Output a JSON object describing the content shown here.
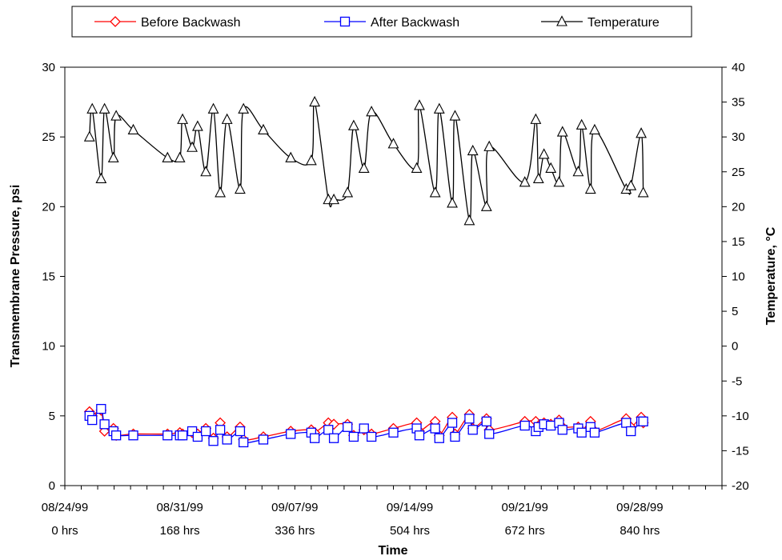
{
  "chart_data": {
    "type": "line",
    "xlabel": "Time",
    "ylabel_left": "Transmembrane Pressure, psi",
    "ylabel_right": "Temperature, °C",
    "x_unit": "hrs",
    "xlim": [
      0,
      960
    ],
    "ylim_left": [
      0,
      30
    ],
    "ylim_right": [
      -20,
      40
    ],
    "yticks_left": [
      "0",
      "5",
      "10",
      "15",
      "20",
      "25",
      "30"
    ],
    "yticks_right": [
      "-20",
      "-15",
      "-10",
      "-5",
      "0",
      "5",
      "10",
      "15",
      "20",
      "25",
      "30",
      "35",
      "40"
    ],
    "xticks": [
      {
        "x": 0,
        "date": "08/24/99",
        "hrs": "0 hrs"
      },
      {
        "x": 168,
        "date": "08/31/99",
        "hrs": "168 hrs"
      },
      {
        "x": 336,
        "date": "09/07/99",
        "hrs": "336 hrs"
      },
      {
        "x": 504,
        "date": "09/14/99",
        "hrs": "504 hrs"
      },
      {
        "x": 672,
        "date": "09/21/99",
        "hrs": "672 hrs"
      },
      {
        "x": 840,
        "date": "09/28/99",
        "hrs": "840 hrs"
      }
    ],
    "grid": false,
    "legend_position": "top",
    "series": [
      {
        "name": "Before Backwash",
        "axis": "left",
        "color": "#ff0000",
        "marker": "diamond",
        "points": [
          [
            36,
            5.3
          ],
          [
            40,
            5.0
          ],
          [
            53,
            5.4
          ],
          [
            58,
            3.9
          ],
          [
            71,
            4.1
          ],
          [
            75,
            3.6
          ],
          [
            100,
            3.7
          ],
          [
            150,
            3.7
          ],
          [
            168,
            3.8
          ],
          [
            172,
            3.7
          ],
          [
            186,
            3.8
          ],
          [
            194,
            3.7
          ],
          [
            206,
            4.1
          ],
          [
            217,
            3.4
          ],
          [
            227,
            4.5
          ],
          [
            237,
            3.5
          ],
          [
            256,
            4.2
          ],
          [
            261,
            3.3
          ],
          [
            290,
            3.5
          ],
          [
            330,
            3.9
          ],
          [
            360,
            4.0
          ],
          [
            365,
            3.8
          ],
          [
            385,
            4.5
          ],
          [
            393,
            4.4
          ],
          [
            413,
            4.4
          ],
          [
            422,
            3.6
          ],
          [
            437,
            4.0
          ],
          [
            448,
            3.7
          ],
          [
            480,
            4.1
          ],
          [
            514,
            4.5
          ],
          [
            518,
            3.9
          ],
          [
            541,
            4.6
          ],
          [
            547,
            3.6
          ],
          [
            566,
            4.9
          ],
          [
            570,
            3.7
          ],
          [
            591,
            5.1
          ],
          [
            596,
            4.1
          ],
          [
            616,
            4.8
          ],
          [
            620,
            4.0
          ],
          [
            672,
            4.6
          ],
          [
            688,
            4.6
          ],
          [
            692,
            4.3
          ],
          [
            700,
            4.5
          ],
          [
            710,
            4.4
          ],
          [
            722,
            4.7
          ],
          [
            727,
            4.2
          ],
          [
            750,
            4.2
          ],
          [
            755,
            3.9
          ],
          [
            768,
            4.6
          ],
          [
            774,
            3.9
          ],
          [
            820,
            4.8
          ],
          [
            827,
            4.2
          ],
          [
            842,
            4.9
          ],
          [
            845,
            4.5
          ]
        ]
      },
      {
        "name": "After Backwash",
        "axis": "left",
        "color": "#0000ff",
        "marker": "square",
        "points": [
          [
            36,
            5.0
          ],
          [
            40,
            4.7
          ],
          [
            53,
            5.5
          ],
          [
            58,
            4.4
          ],
          [
            71,
            3.9
          ],
          [
            75,
            3.6
          ],
          [
            100,
            3.6
          ],
          [
            150,
            3.6
          ],
          [
            168,
            3.6
          ],
          [
            172,
            3.6
          ],
          [
            186,
            3.9
          ],
          [
            194,
            3.5
          ],
          [
            206,
            3.9
          ],
          [
            217,
            3.2
          ],
          [
            227,
            4.0
          ],
          [
            237,
            3.3
          ],
          [
            256,
            3.9
          ],
          [
            261,
            3.1
          ],
          [
            290,
            3.3
          ],
          [
            330,
            3.7
          ],
          [
            360,
            3.8
          ],
          [
            365,
            3.4
          ],
          [
            385,
            4.0
          ],
          [
            393,
            3.4
          ],
          [
            413,
            4.2
          ],
          [
            422,
            3.5
          ],
          [
            437,
            4.1
          ],
          [
            448,
            3.5
          ],
          [
            480,
            3.8
          ],
          [
            514,
            4.1
          ],
          [
            518,
            3.6
          ],
          [
            541,
            4.1
          ],
          [
            547,
            3.4
          ],
          [
            566,
            4.5
          ],
          [
            570,
            3.5
          ],
          [
            591,
            4.8
          ],
          [
            596,
            4.0
          ],
          [
            616,
            4.6
          ],
          [
            620,
            3.7
          ],
          [
            672,
            4.3
          ],
          [
            688,
            3.9
          ],
          [
            692,
            4.2
          ],
          [
            700,
            4.4
          ],
          [
            710,
            4.3
          ],
          [
            722,
            4.5
          ],
          [
            727,
            4.0
          ],
          [
            750,
            4.1
          ],
          [
            755,
            3.8
          ],
          [
            768,
            4.2
          ],
          [
            774,
            3.8
          ],
          [
            820,
            4.5
          ],
          [
            827,
            3.9
          ],
          [
            842,
            4.6
          ],
          [
            845,
            4.6
          ]
        ]
      },
      {
        "name": "Temperature",
        "axis": "right",
        "color": "#000000",
        "marker": "triangle",
        "points": [
          [
            36,
            30.0
          ],
          [
            40,
            34.0
          ],
          [
            53,
            24.0
          ],
          [
            58,
            34.0
          ],
          [
            71,
            27.0
          ],
          [
            75,
            33.0
          ],
          [
            100,
            31.0
          ],
          [
            150,
            27.0
          ],
          [
            168,
            27.0
          ],
          [
            172,
            32.5
          ],
          [
            186,
            28.5
          ],
          [
            194,
            31.5
          ],
          [
            206,
            25.0
          ],
          [
            217,
            34.0
          ],
          [
            227,
            22.0
          ],
          [
            237,
            32.5
          ],
          [
            256,
            22.5
          ],
          [
            261,
            34.0
          ],
          [
            290,
            31.0
          ],
          [
            330,
            27.0
          ],
          [
            360,
            26.6
          ],
          [
            365,
            35.0
          ],
          [
            385,
            21.0
          ],
          [
            393,
            21.0
          ],
          [
            413,
            22.0
          ],
          [
            422,
            31.6
          ],
          [
            437,
            25.5
          ],
          [
            448,
            33.6
          ],
          [
            480,
            29.0
          ],
          [
            514,
            25.5
          ],
          [
            518,
            34.5
          ],
          [
            541,
            22.0
          ],
          [
            547,
            34.0
          ],
          [
            566,
            20.5
          ],
          [
            570,
            33.0
          ],
          [
            591,
            18.0
          ],
          [
            596,
            28.0
          ],
          [
            616,
            20.0
          ],
          [
            620,
            28.6
          ],
          [
            672,
            23.5
          ],
          [
            688,
            32.5
          ],
          [
            692,
            24.0
          ],
          [
            700,
            27.5
          ],
          [
            710,
            25.5
          ],
          [
            722,
            23.5
          ],
          [
            727,
            30.7
          ],
          [
            750,
            25.0
          ],
          [
            755,
            31.7
          ],
          [
            768,
            22.5
          ],
          [
            774,
            31.0
          ],
          [
            820,
            22.5
          ],
          [
            827,
            23.0
          ],
          [
            842,
            30.5
          ],
          [
            845,
            22.0
          ]
        ]
      }
    ]
  }
}
